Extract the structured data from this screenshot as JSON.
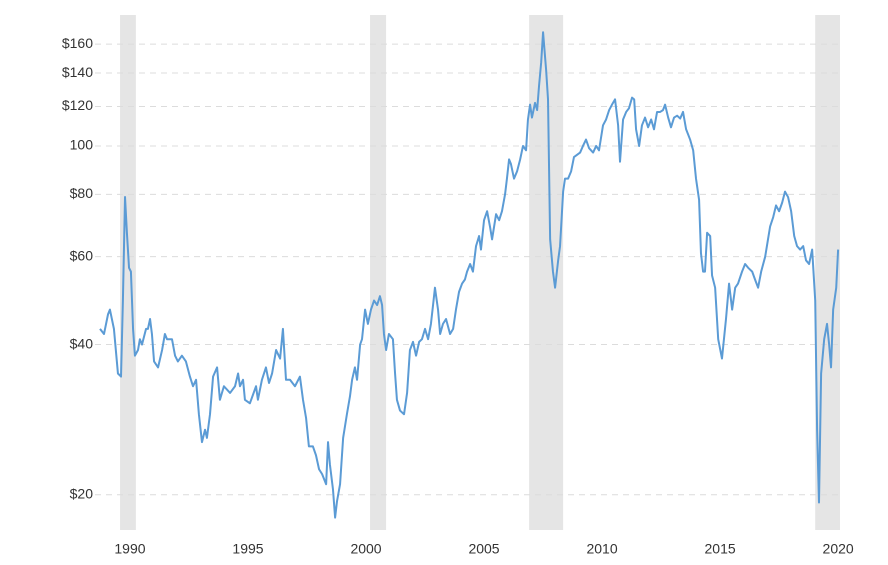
{
  "chart_data": {
    "type": "line",
    "log_scale": true,
    "grid": true,
    "color": "#5b9bd5",
    "recession_color": "#e5e5e5",
    "xlim": [
      1988.73,
      2020.08
    ],
    "xticks": [
      1990,
      1995,
      2000,
      2005,
      2010,
      2015,
      2020
    ],
    "ylim": [
      17,
      183
    ],
    "yticks": [
      {
        "value": 20,
        "label": "$20"
      },
      {
        "value": 40,
        "label": "$40"
      },
      {
        "value": 60,
        "label": "$60"
      },
      {
        "value": 80,
        "label": "$80"
      },
      100,
      {
        "value": 120,
        "label": "$120"
      },
      {
        "value": 140,
        "label": "$140"
      },
      {
        "value": 160,
        "label": "$160"
      }
    ],
    "recessions": [
      [
        1989.58,
        1990.25
      ],
      [
        2000.17,
        2000.85
      ],
      [
        2006.91,
        2008.35
      ],
      [
        2019.03,
        2020.08
      ]
    ],
    "x": [
      1988.73,
      1988.9,
      1989.07,
      1989.15,
      1989.32,
      1989.49,
      1989.62,
      1989.7,
      1989.79,
      1989.87,
      1989.96,
      1990.04,
      1990.13,
      1990.21,
      1990.34,
      1990.42,
      1990.51,
      1990.68,
      1990.76,
      1990.85,
      1990.93,
      1991.02,
      1991.19,
      1991.36,
      1991.48,
      1991.57,
      1991.78,
      1991.91,
      1992.03,
      1992.2,
      1992.37,
      1992.54,
      1992.67,
      1992.8,
      1992.92,
      1993.05,
      1993.18,
      1993.26,
      1993.39,
      1993.52,
      1993.69,
      1993.81,
      1993.98,
      1994.24,
      1994.45,
      1994.58,
      1994.66,
      1994.79,
      1994.87,
      1995.08,
      1995.34,
      1995.42,
      1995.59,
      1995.76,
      1995.89,
      1996.02,
      1996.19,
      1996.36,
      1996.48,
      1996.61,
      1996.78,
      1996.99,
      1997.2,
      1997.33,
      1997.46,
      1997.58,
      1997.75,
      1997.88,
      1998.01,
      1998.14,
      1998.31,
      1998.39,
      1998.47,
      1998.6,
      1998.69,
      1998.77,
      1998.9,
      1999.03,
      1999.19,
      1999.32,
      1999.41,
      1999.53,
      1999.62,
      1999.75,
      1999.83,
      1999.96,
      2000.08,
      2000.21,
      2000.34,
      2000.47,
      2000.59,
      2000.68,
      2000.76,
      2000.85,
      2000.97,
      2001.14,
      2001.23,
      2001.31,
      2001.44,
      2001.61,
      2001.74,
      2001.86,
      2001.99,
      2002.12,
      2002.25,
      2002.37,
      2002.5,
      2002.63,
      2002.75,
      2002.84,
      2002.92,
      2003.05,
      2003.14,
      2003.26,
      2003.39,
      2003.56,
      2003.69,
      2003.81,
      2003.94,
      2004.07,
      2004.19,
      2004.28,
      2004.41,
      2004.53,
      2004.66,
      2004.79,
      2004.87,
      2005.0,
      2005.13,
      2005.25,
      2005.34,
      2005.51,
      2005.64,
      2005.76,
      2005.89,
      2005.97,
      2006.06,
      2006.14,
      2006.27,
      2006.4,
      2006.53,
      2006.65,
      2006.78,
      2006.86,
      2006.95,
      2007.03,
      2007.16,
      2007.25,
      2007.33,
      2007.42,
      2007.5,
      2007.63,
      2007.71,
      2007.8,
      2007.92,
      2008.01,
      2008.14,
      2008.22,
      2008.35,
      2008.43,
      2008.56,
      2008.69,
      2008.81,
      2008.94,
      2009.07,
      2009.19,
      2009.32,
      2009.45,
      2009.62,
      2009.75,
      2009.87,
      2010.04,
      2010.17,
      2010.3,
      2010.42,
      2010.55,
      2010.68,
      2010.76,
      2010.89,
      2011.02,
      2011.14,
      2011.27,
      2011.36,
      2011.44,
      2011.57,
      2011.69,
      2011.82,
      2011.95,
      2012.08,
      2012.2,
      2012.33,
      2012.46,
      2012.58,
      2012.67,
      2012.8,
      2012.92,
      2013.05,
      2013.18,
      2013.31,
      2013.43,
      2013.56,
      2013.73,
      2013.86,
      2013.98,
      2014.11,
      2014.19,
      2014.28,
      2014.36,
      2014.45,
      2014.58,
      2014.66,
      2014.79,
      2014.92,
      2015.08,
      2015.25,
      2015.38,
      2015.51,
      2015.64,
      2015.76,
      2015.93,
      2016.06,
      2016.19,
      2016.36,
      2016.48,
      2016.61,
      2016.74,
      2016.91,
      2017.03,
      2017.12,
      2017.25,
      2017.37,
      2017.5,
      2017.63,
      2017.75,
      2017.88,
      2018.01,
      2018.14,
      2018.26,
      2018.39,
      2018.52,
      2018.64,
      2018.77,
      2018.9,
      2019.03,
      2019.11,
      2019.19,
      2019.28,
      2019.41,
      2019.53,
      2019.62,
      2019.7,
      2019.79,
      2019.92,
      2020.0
    ],
    "values": [
      43,
      42,
      46,
      47,
      43,
      35,
      34.5,
      49,
      79,
      67,
      57,
      56,
      43,
      38,
      39,
      41,
      40,
      43,
      43,
      45,
      42,
      37,
      36,
      39,
      42,
      41,
      41,
      38,
      37,
      38,
      37,
      34.5,
      33,
      34,
      29,
      25.5,
      27,
      26,
      29,
      34.5,
      36,
      31,
      33,
      32,
      33,
      35,
      33,
      34,
      31,
      30.5,
      33,
      31,
      34,
      36,
      33.5,
      35,
      39,
      37.5,
      43,
      34,
      34,
      33,
      34.5,
      31,
      28.5,
      25,
      25,
      24,
      22.5,
      22,
      21,
      25.5,
      23,
      20.5,
      18,
      19.4,
      21,
      26,
      29,
      31.5,
      34,
      36,
      34,
      40,
      41,
      47,
      44,
      47,
      49,
      48,
      50,
      48,
      42,
      39,
      42,
      41,
      35,
      31,
      29.5,
      29,
      32,
      39,
      40.5,
      38,
      40.5,
      41,
      43,
      41,
      44,
      48,
      52,
      47,
      42,
      44,
      45,
      42,
      43,
      47,
      51,
      53,
      54,
      56,
      58,
      56,
      63,
      66,
      62,
      71,
      74,
      69,
      65,
      73,
      71,
      74,
      80,
      86,
      94,
      92,
      86,
      89,
      94,
      100,
      98,
      113,
      121,
      114,
      122,
      118,
      132,
      147,
      169,
      142,
      124,
      65,
      56,
      52,
      59,
      63,
      81,
      86,
      86,
      89,
      95,
      96,
      97,
      100,
      103,
      99,
      97,
      100,
      98,
      110,
      113,
      118,
      121,
      124,
      110,
      93,
      113,
      117,
      119,
      125,
      124,
      108,
      100,
      110,
      114,
      109,
      113,
      108,
      117,
      117,
      118,
      121,
      114,
      109,
      114,
      115,
      113.5,
      117,
      108,
      103,
      98,
      86,
      78,
      61,
      56,
      56,
      67,
      66,
      55,
      52,
      41,
      37.5,
      45,
      53,
      47,
      52,
      53,
      56,
      58,
      57,
      56,
      54,
      52,
      56,
      60,
      65,
      69,
      72,
      76,
      74,
      77,
      81,
      79,
      74,
      66,
      63,
      62,
      63,
      59,
      58,
      62,
      49,
      27,
      19.3,
      35,
      41,
      44,
      40,
      36,
      47,
      52,
      62
    ]
  }
}
